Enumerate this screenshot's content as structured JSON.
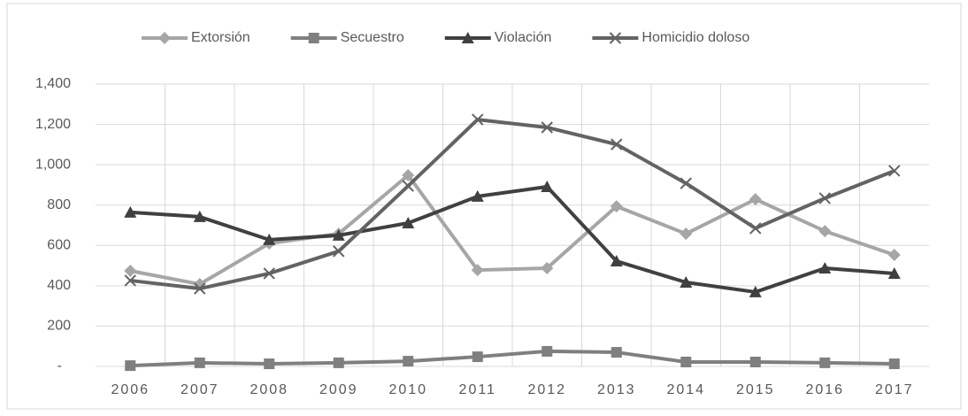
{
  "chart_data": {
    "type": "line",
    "categories": [
      "2006",
      "2007",
      "2008",
      "2009",
      "2010",
      "2011",
      "2012",
      "2013",
      "2014",
      "2015",
      "2016",
      "2017"
    ],
    "series": [
      {
        "name": "Extorsión",
        "color": "#a6a6a6",
        "marker": "diamond",
        "values": [
          474,
          408,
          610,
          658,
          948,
          478,
          487,
          794,
          658,
          829,
          671,
          553
        ]
      },
      {
        "name": "Secuestro",
        "color": "#7f7f7f",
        "marker": "square",
        "values": [
          4,
          18,
          13,
          18,
          26,
          48,
          75,
          70,
          22,
          22,
          18,
          13
        ]
      },
      {
        "name": "Violación",
        "color": "#404040",
        "marker": "triangle",
        "values": [
          764,
          742,
          628,
          650,
          711,
          843,
          891,
          522,
          417,
          369,
          487,
          461
        ]
      },
      {
        "name": "Homicidio doloso",
        "color": "#636363",
        "marker": "x",
        "values": [
          426,
          386,
          461,
          571,
          895,
          1224,
          1185,
          1101,
          908,
          685,
          834,
          970
        ]
      }
    ],
    "ylim": [
      0,
      1400
    ],
    "yticks": [
      {
        "value": 0,
        "label": "-"
      },
      200,
      400,
      600,
      800,
      {
        "value": 1000,
        "label": "1,000"
      },
      {
        "value": 1200,
        "label": "1,200"
      },
      {
        "value": 1400,
        "label": "1,400"
      }
    ],
    "grid": true,
    "legend": "top"
  }
}
